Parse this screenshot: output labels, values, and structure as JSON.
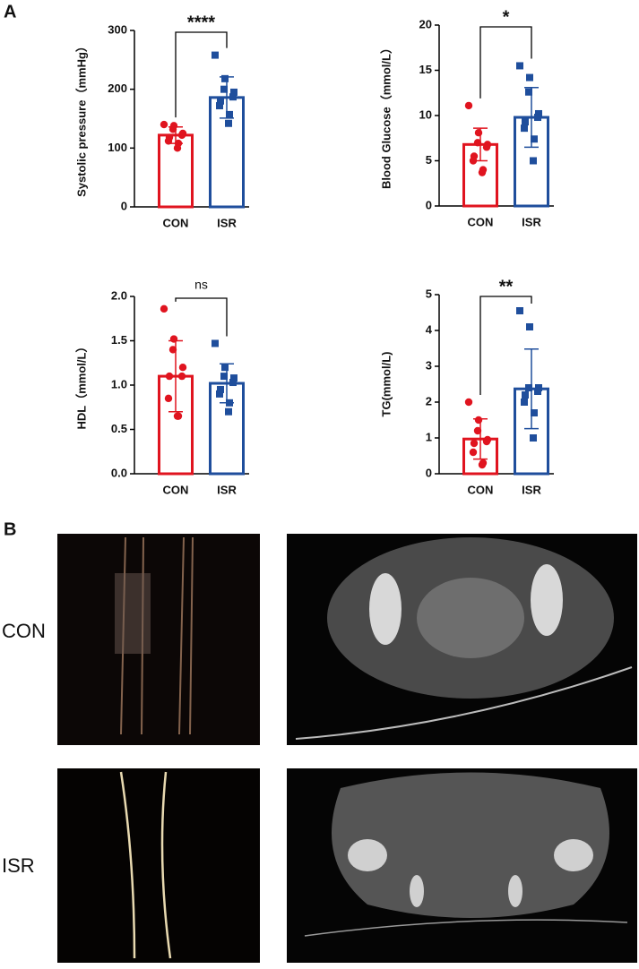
{
  "panel_labels": [
    "A",
    "B"
  ],
  "chart_data": [
    {
      "type": "bar",
      "ylabel": "Systolic pressure（mmHg）",
      "categories": [
        "CON",
        "ISR"
      ],
      "colors": [
        "#e0141f",
        "#1f4e9c"
      ],
      "values": [
        122,
        186
      ],
      "errors": [
        14,
        35
      ],
      "points": [
        [
          140,
          138,
          132,
          125,
          122,
          118,
          112,
          108,
          100
        ],
        [
          258,
          218,
          200,
          195,
          187,
          180,
          172,
          157,
          142
        ]
      ],
      "ylim": [
        0,
        300
      ],
      "yticks": [
        0,
        100,
        200,
        300
      ],
      "significance": "****"
    },
    {
      "type": "bar",
      "ylabel": "Blood Glucose（mmol/L）",
      "categories": [
        "CON",
        "ISR"
      ],
      "colors": [
        "#e0141f",
        "#1f4e9c"
      ],
      "values": [
        6.8,
        9.8
      ],
      "errors": [
        1.8,
        3.3
      ],
      "points": [
        [
          11.1,
          8.1,
          7.0,
          6.8,
          6.5,
          5.5,
          5.0,
          4.0,
          3.7
        ],
        [
          15.5,
          14.2,
          12.6,
          10.2,
          9.8,
          9.3,
          8.6,
          7.4,
          5.0
        ]
      ],
      "ylim": [
        0,
        20
      ],
      "yticks": [
        0,
        5,
        10,
        15,
        20
      ],
      "significance": "*"
    },
    {
      "type": "bar",
      "ylabel": "HDL（mmol/L）",
      "categories": [
        "CON",
        "ISR"
      ],
      "colors": [
        "#e0141f",
        "#1f4e9c"
      ],
      "values": [
        1.1,
        1.02
      ],
      "errors": [
        0.4,
        0.22
      ],
      "points": [
        [
          1.86,
          1.52,
          1.4,
          1.2,
          1.1,
          1.1,
          0.85,
          0.65,
          0.65
        ],
        [
          1.47,
          1.2,
          1.1,
          1.08,
          1.03,
          0.95,
          0.9,
          0.8,
          0.7
        ]
      ],
      "ylim": [
        0,
        2
      ],
      "yticks": [
        {
          "value": 0,
          "label": "0.0"
        },
        {
          "value": 0.5,
          "label": "0.5"
        },
        {
          "value": 1,
          "label": "1.0"
        },
        {
          "value": 1.5,
          "label": "1.5"
        },
        {
          "value": 2,
          "label": "2.0"
        }
      ],
      "significance": "ns"
    },
    {
      "type": "bar",
      "ylabel": "TG(mmol/L)",
      "categories": [
        "CON",
        "ISR"
      ],
      "colors": [
        "#e0141f",
        "#1f4e9c"
      ],
      "values": [
        0.97,
        2.37
      ],
      "errors": [
        0.56,
        1.11
      ],
      "points": [
        [
          2.0,
          1.5,
          1.2,
          0.95,
          0.9,
          0.85,
          0.6,
          0.3,
          0.25
        ],
        [
          4.55,
          4.1,
          2.4,
          2.4,
          2.3,
          2.2,
          2.0,
          1.7,
          1.0
        ]
      ],
      "ylim": [
        0,
        5
      ],
      "yticks": [
        0,
        1,
        2,
        3,
        4,
        5
      ],
      "significance": "**"
    }
  ],
  "image_rows": [
    "CON",
    "ISR"
  ]
}
